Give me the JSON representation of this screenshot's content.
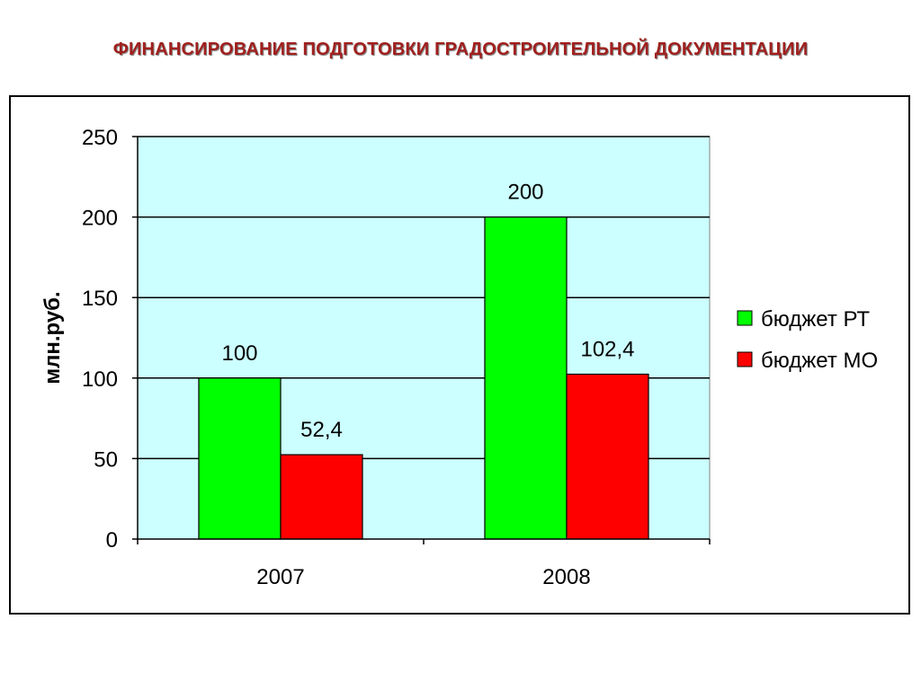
{
  "title": "ФИНАНСИРОВАНИЕ ПОДГОТОВКИ ГРАДОСТРОИТЕЛЬНОЙ ДОКУМЕНТАЦИИ",
  "chart_data": {
    "type": "bar",
    "categories": [
      "2007",
      "2008"
    ],
    "series": [
      {
        "name": "бюджет РТ",
        "values": [
          100,
          200
        ],
        "labels": [
          "100",
          "200"
        ],
        "color": "#00ff00"
      },
      {
        "name": "бюджет МО",
        "values": [
          52.4,
          102.4
        ],
        "labels": [
          "52,4",
          "102,4"
        ],
        "color": "#ff0000"
      }
    ],
    "xlabel": "",
    "ylabel": "млн.руб.",
    "ylim": [
      0,
      250
    ],
    "yticks": [
      "0",
      "50",
      "100",
      "150",
      "200",
      "250"
    ],
    "plot_background": "#ccffff",
    "grid": true,
    "legend_position": "right"
  }
}
